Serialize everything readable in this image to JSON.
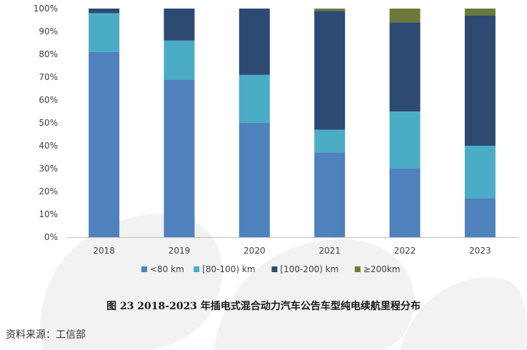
{
  "chart_data": {
    "type": "bar",
    "stacked": true,
    "categories": [
      "2018",
      "2019",
      "2020",
      "2021",
      "2022",
      "2023"
    ],
    "series": [
      {
        "name": "<80 km",
        "color": "#4f81bd",
        "values": [
          81,
          69,
          50,
          37,
          30,
          17
        ]
      },
      {
        "name": "[80-100) km",
        "color": "#4bacc6",
        "values": [
          17,
          17,
          21,
          10,
          25,
          23
        ]
      },
      {
        "name": "[100-200) km",
        "color": "#2c4a72",
        "values": [
          2,
          14,
          29,
          52,
          39,
          57
        ]
      },
      {
        "name": "≥200km",
        "color": "#6b7a3a",
        "values": [
          0,
          0,
          0,
          1,
          6,
          3
        ]
      }
    ],
    "ylim": [
      0,
      100
    ],
    "yticks": [
      "0%",
      "10%",
      "20%",
      "30%",
      "40%",
      "50%",
      "60%",
      "70%",
      "80%",
      "90%",
      "100%"
    ],
    "grid": false,
    "legend_position": "bottom"
  },
  "caption": "图 23 2018-2023 年插电式混合动力汽车公告车型纯电续航里程分布",
  "source": "资料来源：工信部"
}
